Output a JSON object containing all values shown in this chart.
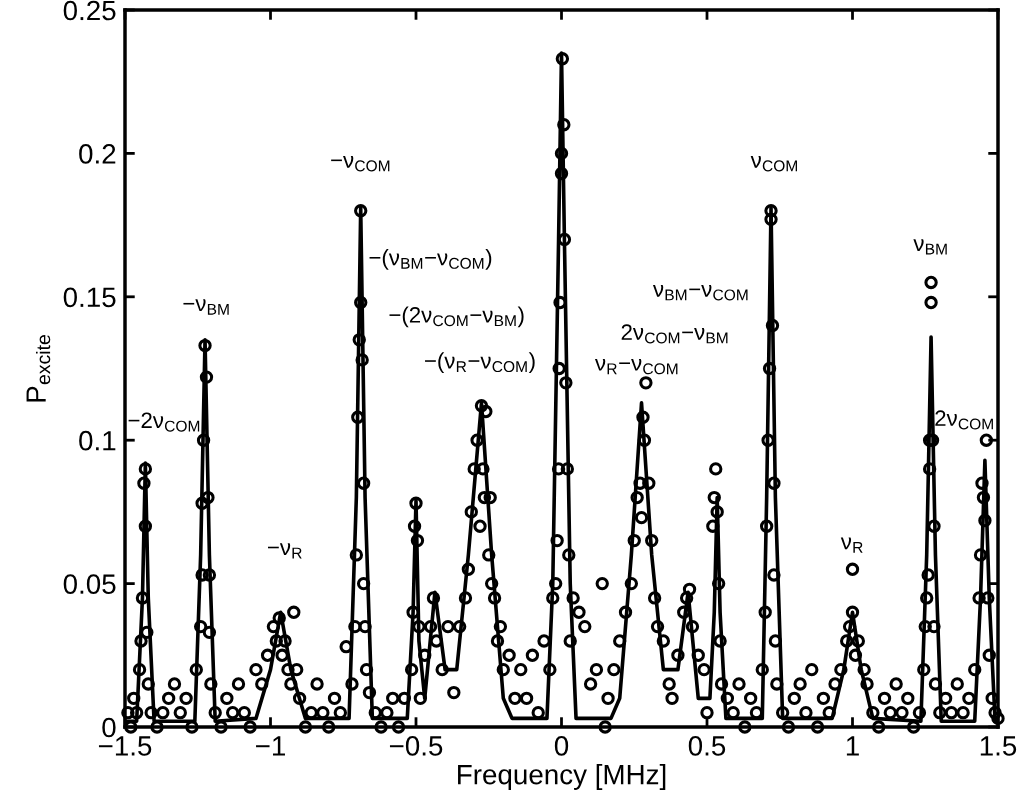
{
  "chart_data": {
    "type": "scatter",
    "xlabel": "Frequency [MHz]",
    "ylabel": "P$_{excite}$",
    "xlim": [
      -1.5,
      1.5
    ],
    "ylim": [
      0,
      0.25
    ],
    "xticks": [
      {
        "value": -1.5,
        "label": "−1.5"
      },
      {
        "value": -1,
        "label": "−1"
      },
      {
        "value": -0.5,
        "label": "−0.5"
      },
      0,
      0.5,
      1,
      1.5
    ],
    "yticks": [
      0,
      0.05,
      0.1,
      0.15,
      0.2,
      0.25
    ],
    "series": [
      {
        "type": "line",
        "color": "#000000",
        "line_style": "solid",
        "marker": "none",
        "x": [
          -1.5,
          -1.46,
          -1.44,
          -1.43,
          -1.42,
          -1.4,
          -1.26,
          -1.24,
          -1.225,
          -1.21,
          -1.19,
          -1.05,
          -1.0,
          -0.965,
          -0.93,
          -0.88,
          -0.73,
          -0.705,
          -0.69,
          -0.675,
          -0.65,
          -0.53,
          -0.51,
          -0.5,
          -0.49,
          -0.47,
          -0.435,
          -0.4,
          -0.36,
          -0.32,
          -0.275,
          -0.24,
          -0.2,
          -0.17,
          -0.05,
          -0.03,
          -0.01,
          0.0,
          0.01,
          0.03,
          0.05,
          0.17,
          0.2,
          0.24,
          0.275,
          0.31,
          0.35,
          0.4,
          0.435,
          0.47,
          0.51,
          0.525,
          0.535,
          0.545,
          0.565,
          0.69,
          0.705,
          0.72,
          0.735,
          0.76,
          0.93,
          0.97,
          1.0,
          1.03,
          1.07,
          1.235,
          1.255,
          1.27,
          1.285,
          1.305,
          1.42,
          1.44,
          1.455,
          1.47,
          1.49,
          1.5
        ],
        "values": [
          0.002,
          0.002,
          0.045,
          0.092,
          0.045,
          0.002,
          0.002,
          0.06,
          0.135,
          0.06,
          0.002,
          0.003,
          0.02,
          0.04,
          0.02,
          0.003,
          0.003,
          0.08,
          0.181,
          0.08,
          0.003,
          0.003,
          0.04,
          0.079,
          0.03,
          0.01,
          0.047,
          0.02,
          0.02,
          0.06,
          0.113,
          0.06,
          0.01,
          0.003,
          0.003,
          0.05,
          0.17,
          0.235,
          0.17,
          0.05,
          0.003,
          0.003,
          0.01,
          0.06,
          0.113,
          0.06,
          0.02,
          0.02,
          0.047,
          0.01,
          0.01,
          0.04,
          0.08,
          0.04,
          0.003,
          0.003,
          0.08,
          0.181,
          0.08,
          0.003,
          0.003,
          0.02,
          0.04,
          0.02,
          0.003,
          0.002,
          0.06,
          0.136,
          0.06,
          0.002,
          0.002,
          0.045,
          0.093,
          0.045,
          0.002,
          0.002
        ]
      },
      {
        "color": "#000000",
        "marker": "circle",
        "x": [
          -1.49,
          -1.48,
          -1.47,
          -1.46,
          -1.45,
          -1.445,
          -1.44,
          -1.435,
          -1.43,
          -1.43,
          -1.425,
          -1.42,
          -1.41,
          -1.39,
          -1.37,
          -1.35,
          -1.33,
          -1.31,
          -1.29,
          -1.27,
          -1.255,
          -1.24,
          -1.235,
          -1.235,
          -1.23,
          -1.225,
          -1.22,
          -1.215,
          -1.21,
          -1.21,
          -1.205,
          -1.19,
          -1.17,
          -1.15,
          -1.13,
          -1.11,
          -1.09,
          -1.07,
          -1.05,
          -1.03,
          -1.01,
          -0.99,
          -0.98,
          -0.97,
          -0.96,
          -0.95,
          -0.92,
          -0.94,
          -0.93,
          -0.91,
          -0.9,
          -0.88,
          -0.86,
          -0.84,
          -0.82,
          -0.8,
          -0.78,
          -0.76,
          -0.74,
          -0.72,
          -0.71,
          -0.705,
          -0.7,
          -0.695,
          -0.69,
          -0.69,
          -0.685,
          -0.68,
          -0.68,
          -0.675,
          -0.67,
          -0.66,
          -0.64,
          -0.62,
          -0.6,
          -0.58,
          -0.56,
          -0.54,
          -0.515,
          -0.51,
          -0.505,
          -0.5,
          -0.495,
          -0.49,
          -0.485,
          -0.47,
          -0.45,
          -0.44,
          -0.43,
          -0.41,
          -0.39,
          -0.37,
          -0.35,
          -0.33,
          -0.32,
          -0.31,
          -0.3,
          -0.29,
          -0.28,
          -0.275,
          -0.27,
          -0.265,
          -0.26,
          -0.25,
          -0.245,
          -0.24,
          -0.23,
          -0.22,
          -0.21,
          -0.2,
          -0.18,
          -0.16,
          -0.14,
          -0.12,
          -0.1,
          -0.08,
          -0.06,
          -0.04,
          -0.03,
          -0.02,
          -0.015,
          -0.01,
          -0.008,
          -0.005,
          0.0,
          0.0,
          0.003,
          0.008,
          0.01,
          0.015,
          0.02,
          0.025,
          0.03,
          0.04,
          0.06,
          0.08,
          0.1,
          0.12,
          0.14,
          0.15,
          0.16,
          0.18,
          0.2,
          0.22,
          0.24,
          0.25,
          0.26,
          0.27,
          0.275,
          0.28,
          0.285,
          0.29,
          0.3,
          0.31,
          0.32,
          0.33,
          0.35,
          0.37,
          0.38,
          0.4,
          0.42,
          0.43,
          0.44,
          0.45,
          0.47,
          0.49,
          0.5,
          0.52,
          0.525,
          0.53,
          0.535,
          0.54,
          0.545,
          0.55,
          0.57,
          0.59,
          0.61,
          0.63,
          0.65,
          0.67,
          0.69,
          0.7,
          0.705,
          0.71,
          0.715,
          0.72,
          0.72,
          0.725,
          0.73,
          0.73,
          0.735,
          0.74,
          0.76,
          0.78,
          0.8,
          0.82,
          0.84,
          0.86,
          0.88,
          0.9,
          0.92,
          0.94,
          0.96,
          0.98,
          0.99,
          1.0,
          1.0,
          1.01,
          1.02,
          1.04,
          1.05,
          1.07,
          1.09,
          1.11,
          1.13,
          1.15,
          1.17,
          1.19,
          1.21,
          1.23,
          1.245,
          1.25,
          1.255,
          1.26,
          1.265,
          1.265,
          1.27,
          1.27,
          1.275,
          1.28,
          1.28,
          1.285,
          1.3,
          1.32,
          1.34,
          1.36,
          1.38,
          1.4,
          1.42,
          1.435,
          1.44,
          1.445,
          1.45,
          1.455,
          1.46,
          1.465,
          1.47,
          1.48,
          1.49,
          1.5
        ],
        "values": [
          0.005,
          0.0,
          0.01,
          0.005,
          0.02,
          0.03,
          0.045,
          0.085,
          0.09,
          0.07,
          0.033,
          0.015,
          0.005,
          0.0,
          0.005,
          0.01,
          0.015,
          0.005,
          0.01,
          0.0,
          0.02,
          0.035,
          0.053,
          0.078,
          0.1,
          0.133,
          0.122,
          0.08,
          0.053,
          0.033,
          0.015,
          0.005,
          0.0,
          0.01,
          0.005,
          0.015,
          0.005,
          0.0,
          0.02,
          0.015,
          0.025,
          0.035,
          0.03,
          0.038,
          0.025,
          0.03,
          0.04,
          0.02,
          0.015,
          0.02,
          0.01,
          0.0,
          0.005,
          0.015,
          0.005,
          0.0,
          0.01,
          0.005,
          0.028,
          0.015,
          0.035,
          0.06,
          0.108,
          0.135,
          0.18,
          0.148,
          0.128,
          0.085,
          0.05,
          0.035,
          0.02,
          0.012,
          0.005,
          0.0,
          0.005,
          0.01,
          0.0,
          0.01,
          0.02,
          0.04,
          0.07,
          0.078,
          0.065,
          0.035,
          0.01,
          0.025,
          0.035,
          0.045,
          0.03,
          0.02,
          0.035,
          0.012,
          0.035,
          0.045,
          0.055,
          0.075,
          0.09,
          0.1,
          0.07,
          0.112,
          0.09,
          0.08,
          0.11,
          0.06,
          0.08,
          0.05,
          0.045,
          0.03,
          0.035,
          0.02,
          0.025,
          0.01,
          0.02,
          0.01,
          0.025,
          0.005,
          0.03,
          0.02,
          0.045,
          0.05,
          0.065,
          0.09,
          0.125,
          0.148,
          0.193,
          0.2,
          0.233,
          0.21,
          0.17,
          0.12,
          0.09,
          0.06,
          0.03,
          0.045,
          0.04,
          0.035,
          0.015,
          0.02,
          0.05,
          0.0,
          0.01,
          0.02,
          0.03,
          0.04,
          0.05,
          0.065,
          0.08,
          0.085,
          0.073,
          0.108,
          0.1,
          0.12,
          0.085,
          0.065,
          0.045,
          0.035,
          0.03,
          0.015,
          0.01,
          0.025,
          0.04,
          0.045,
          0.048,
          0.035,
          0.025,
          0.02,
          0.005,
          0.07,
          0.08,
          0.09,
          0.075,
          0.05,
          0.03,
          0.015,
          0.01,
          0.005,
          0.015,
          0.0,
          0.01,
          0.005,
          0.02,
          0.04,
          0.07,
          0.1,
          0.125,
          0.18,
          0.177,
          0.14,
          0.085,
          0.053,
          0.03,
          0.015,
          0.005,
          0.0,
          0.01,
          0.015,
          0.005,
          0.02,
          0.0,
          0.01,
          0.005,
          0.015,
          0.02,
          0.03,
          0.035,
          0.055,
          0.04,
          0.025,
          0.03,
          0.02,
          0.015,
          0.005,
          0.0,
          0.01,
          0.005,
          0.015,
          0.005,
          0.01,
          0.0,
          0.005,
          0.02,
          0.035,
          0.045,
          0.053,
          0.09,
          0.1,
          0.148,
          0.155,
          0.1,
          0.07,
          0.035,
          0.015,
          0.005,
          0.01,
          0.005,
          0.015,
          0.005,
          0.01,
          0.02,
          0.045,
          0.06,
          0.085,
          0.08,
          0.072,
          0.1,
          0.045,
          0.025,
          0.01,
          0.005,
          0.003
        ]
      }
    ],
    "annotations": [
      "−2ν$_{COM}$",
      "−ν$_{BM}$",
      "−ν$_{R}$",
      "−ν$_{COM}$",
      "−(ν$_{BM}$−ν$_{COM}$)",
      "−(2ν$_{COM}$−ν$_{BM}$)",
      "−(ν$_{R}$−ν$_{COM}$)",
      "ν$_{BM}$−ν$_{COM}$",
      "2ν$_{COM}$−ν$_{BM}$",
      "ν$_{R}$−ν$_{COM}$",
      "ν$_{COM}$",
      "ν$_{BM}$",
      "ν$_{R}$",
      "2ν$_{COM}$"
    ]
  }
}
